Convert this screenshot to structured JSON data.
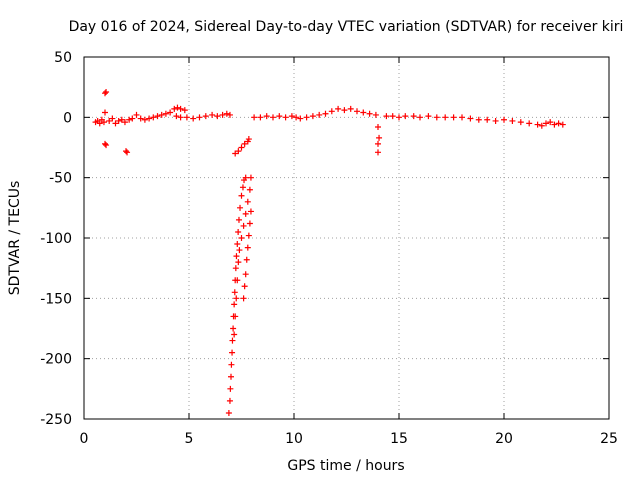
{
  "chart_data": {
    "type": "scatter",
    "title": "Day 016 of 2024, Sidereal Day-to-day VTEC variation (SDTVAR) for receiver kiri",
    "xlabel": "GPS time / hours",
    "ylabel": "SDTVAR / TECUs",
    "xlim": [
      0,
      25
    ],
    "ylim": [
      -250,
      50
    ],
    "xticks": [
      0,
      5,
      10,
      15,
      20,
      25
    ],
    "yticks": [
      -250,
      -200,
      -150,
      -100,
      -50,
      0,
      50
    ],
    "grid": true,
    "marker": "+",
    "color": "#ff0000",
    "series": [
      {
        "name": "SDTVAR",
        "points": [
          [
            0.55,
            -4
          ],
          [
            0.65,
            -3
          ],
          [
            0.75,
            -5
          ],
          [
            0.85,
            -2
          ],
          [
            0.95,
            -4
          ],
          [
            1.0,
            20
          ],
          [
            1.05,
            21
          ],
          [
            1.0,
            4
          ],
          [
            1.0,
            -22
          ],
          [
            1.05,
            -23
          ],
          [
            1.2,
            -3
          ],
          [
            1.35,
            -1
          ],
          [
            1.5,
            -5
          ],
          [
            1.65,
            -3
          ],
          [
            1.8,
            -2
          ],
          [
            1.95,
            -4
          ],
          [
            2.0,
            -28
          ],
          [
            2.05,
            -29
          ],
          [
            2.15,
            -2
          ],
          [
            2.3,
            -1
          ],
          [
            2.5,
            2
          ],
          [
            2.7,
            -1
          ],
          [
            2.9,
            -2
          ],
          [
            3.1,
            -1
          ],
          [
            3.3,
            0
          ],
          [
            3.5,
            1
          ],
          [
            3.7,
            2
          ],
          [
            3.9,
            3
          ],
          [
            4.1,
            4
          ],
          [
            4.3,
            7
          ],
          [
            4.45,
            8
          ],
          [
            4.6,
            7
          ],
          [
            4.8,
            6
          ],
          [
            4.4,
            1
          ],
          [
            4.6,
            0
          ],
          [
            4.9,
            0
          ],
          [
            5.2,
            -1
          ],
          [
            5.5,
            0
          ],
          [
            5.8,
            1
          ],
          [
            6.1,
            2
          ],
          [
            6.35,
            1
          ],
          [
            6.6,
            2
          ],
          [
            6.8,
            3
          ],
          [
            6.95,
            2
          ],
          [
            7.2,
            -30
          ],
          [
            7.35,
            -28
          ],
          [
            7.5,
            -25
          ],
          [
            7.65,
            -22
          ],
          [
            7.8,
            -20
          ],
          [
            7.85,
            -18
          ],
          [
            6.9,
            -245
          ],
          [
            6.95,
            -235
          ],
          [
            6.97,
            -225
          ],
          [
            7.0,
            -215
          ],
          [
            7.02,
            -205
          ],
          [
            7.05,
            -195
          ],
          [
            7.07,
            -185
          ],
          [
            7.1,
            -175
          ],
          [
            7.12,
            -165
          ],
          [
            7.15,
            -155
          ],
          [
            7.18,
            -145
          ],
          [
            7.2,
            -135
          ],
          [
            7.23,
            -125
          ],
          [
            7.26,
            -115
          ],
          [
            7.3,
            -105
          ],
          [
            7.34,
            -95
          ],
          [
            7.38,
            -85
          ],
          [
            7.43,
            -75
          ],
          [
            7.5,
            -65
          ],
          [
            7.57,
            -58
          ],
          [
            7.62,
            -52
          ],
          [
            7.7,
            -50
          ],
          [
            7.15,
            -180
          ],
          [
            7.2,
            -165
          ],
          [
            7.25,
            -150
          ],
          [
            7.3,
            -135
          ],
          [
            7.35,
            -120
          ],
          [
            7.4,
            -110
          ],
          [
            7.5,
            -100
          ],
          [
            7.6,
            -90
          ],
          [
            7.7,
            -80
          ],
          [
            7.8,
            -70
          ],
          [
            7.9,
            -60
          ],
          [
            7.95,
            -50
          ],
          [
            7.6,
            -150
          ],
          [
            7.65,
            -140
          ],
          [
            7.7,
            -130
          ],
          [
            7.75,
            -118
          ],
          [
            7.8,
            -108
          ],
          [
            7.85,
            -98
          ],
          [
            7.9,
            -88
          ],
          [
            7.95,
            -78
          ],
          [
            8.1,
            0
          ],
          [
            8.4,
            0
          ],
          [
            8.7,
            1
          ],
          [
            9.0,
            0
          ],
          [
            9.3,
            1
          ],
          [
            9.6,
            0
          ],
          [
            9.9,
            1
          ],
          [
            10.1,
            0
          ],
          [
            10.3,
            -1
          ],
          [
            10.6,
            0
          ],
          [
            10.9,
            1
          ],
          [
            11.2,
            2
          ],
          [
            11.5,
            3
          ],
          [
            11.8,
            5
          ],
          [
            12.1,
            7
          ],
          [
            12.4,
            6
          ],
          [
            12.7,
            7
          ],
          [
            13.0,
            5
          ],
          [
            13.3,
            4
          ],
          [
            13.6,
            3
          ],
          [
            13.9,
            2
          ],
          [
            14.0,
            -8
          ],
          [
            14.05,
            -17
          ],
          [
            14.0,
            -22
          ],
          [
            14.0,
            -29
          ],
          [
            14.4,
            1
          ],
          [
            14.7,
            1
          ],
          [
            15.0,
            0
          ],
          [
            15.3,
            1
          ],
          [
            15.7,
            1
          ],
          [
            16.0,
            0
          ],
          [
            16.4,
            1
          ],
          [
            16.8,
            0
          ],
          [
            17.2,
            0
          ],
          [
            17.6,
            0
          ],
          [
            18.0,
            0
          ],
          [
            18.4,
            -1
          ],
          [
            18.8,
            -2
          ],
          [
            19.2,
            -2
          ],
          [
            19.6,
            -3
          ],
          [
            20.0,
            -2
          ],
          [
            20.4,
            -3
          ],
          [
            20.8,
            -4
          ],
          [
            21.2,
            -5
          ],
          [
            21.6,
            -6
          ],
          [
            21.8,
            -7
          ],
          [
            22.0,
            -5
          ],
          [
            22.2,
            -4
          ],
          [
            22.4,
            -6
          ],
          [
            22.6,
            -5
          ],
          [
            22.8,
            -6
          ]
        ]
      }
    ]
  }
}
